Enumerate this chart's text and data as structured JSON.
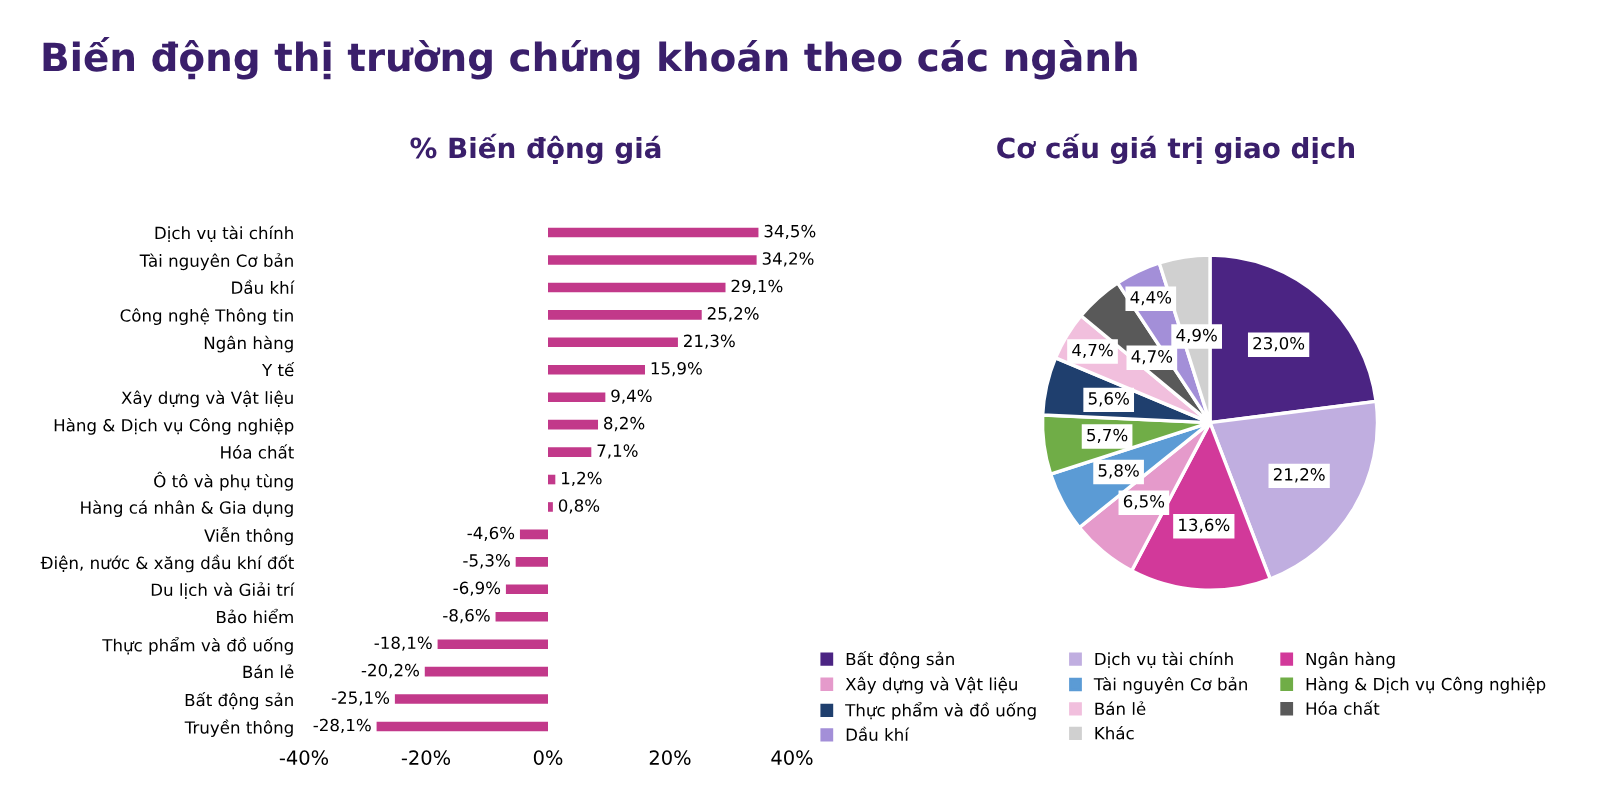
{
  "chart_data": [
    {
      "type": "bar",
      "orientation": "horizontal",
      "title": "% Biến động giá",
      "annotations": [
        "Biến động thị trường chứng khoán theo các ngành"
      ],
      "categories": [
        "Dịch vụ tài chính",
        "Tài nguyên Cơ bản",
        "Dầu khí",
        "Công nghệ Thông tin",
        "Ngân hàng",
        "Y tế",
        "Xây dựng và Vật liệu",
        "Hàng & Dịch vụ Công nghiệp",
        "Hóa chất",
        "Ô tô và phụ tùng",
        "Hàng cá nhân & Gia dụng",
        "Viễn thông",
        "Điện, nước & xăng dầu khí đốt",
        "Du lịch và Giải trí",
        "Bảo hiểm",
        "Thực phẩm và đồ uống",
        "Bán lẻ",
        "Bất động sản",
        "Truyền thông"
      ],
      "values": [
        34.5,
        34.2,
        29.1,
        25.2,
        21.3,
        15.9,
        9.4,
        8.2,
        7.1,
        1.2,
        0.8,
        -4.6,
        -5.3,
        -6.9,
        -8.6,
        -18.1,
        -20.2,
        -25.1,
        -28.1
      ],
      "value_labels": [
        "34,5%",
        "34,2%",
        "29,1%",
        "25,2%",
        "21,3%",
        "15,9%",
        "9,4%",
        "8,2%",
        "7,1%",
        "1,2%",
        "0,8%",
        "-4,6%",
        "-5,3%",
        "-6,9%",
        "-8,6%",
        "-18,1%",
        "-20,2%",
        "-25,1%",
        "-28,1%"
      ],
      "color": "#c2398a",
      "xlim": [
        -40,
        40
      ],
      "xticks": [
        {
          "value": -40,
          "label": "-40%"
        },
        {
          "value": -20,
          "label": "-20%"
        },
        {
          "value": 0,
          "label": "0%"
        },
        {
          "value": 20,
          "label": "20%"
        },
        {
          "value": 40,
          "label": "40%"
        }
      ],
      "grid": false
    },
    {
      "type": "pie",
      "title": "Cơ cấu giá trị giao dịch",
      "categories": [
        "Bất động sản",
        "Dịch vụ tài chính",
        "Ngân hàng",
        "Xây dựng và Vật liệu",
        "Tài nguyên Cơ bản",
        "Hàng & Dịch vụ Công nghiệp",
        "Thực phẩm và đồ uống",
        "Bán lẻ",
        "Hóa chất",
        "Dầu khí",
        "Khác"
      ],
      "values": [
        23.0,
        21.2,
        13.6,
        6.5,
        5.8,
        5.7,
        5.6,
        4.7,
        4.7,
        4.4,
        4.9
      ],
      "value_labels": [
        "23,0%",
        "21,2%",
        "13,6%",
        "6,5%",
        "5,8%",
        "5,7%",
        "5,6%",
        "4,7%",
        "4,7%",
        "4,4%",
        "4,9%"
      ],
      "colors": [
        "#4b2483",
        "#c0aee0",
        "#d2399a",
        "#e59acb",
        "#5b9bd5",
        "#70ad47",
        "#1f3f6e",
        "#f1bfdd",
        "#595959",
        "#a38fd8",
        "#d0d0d0"
      ],
      "legend": "bottom"
    }
  ]
}
